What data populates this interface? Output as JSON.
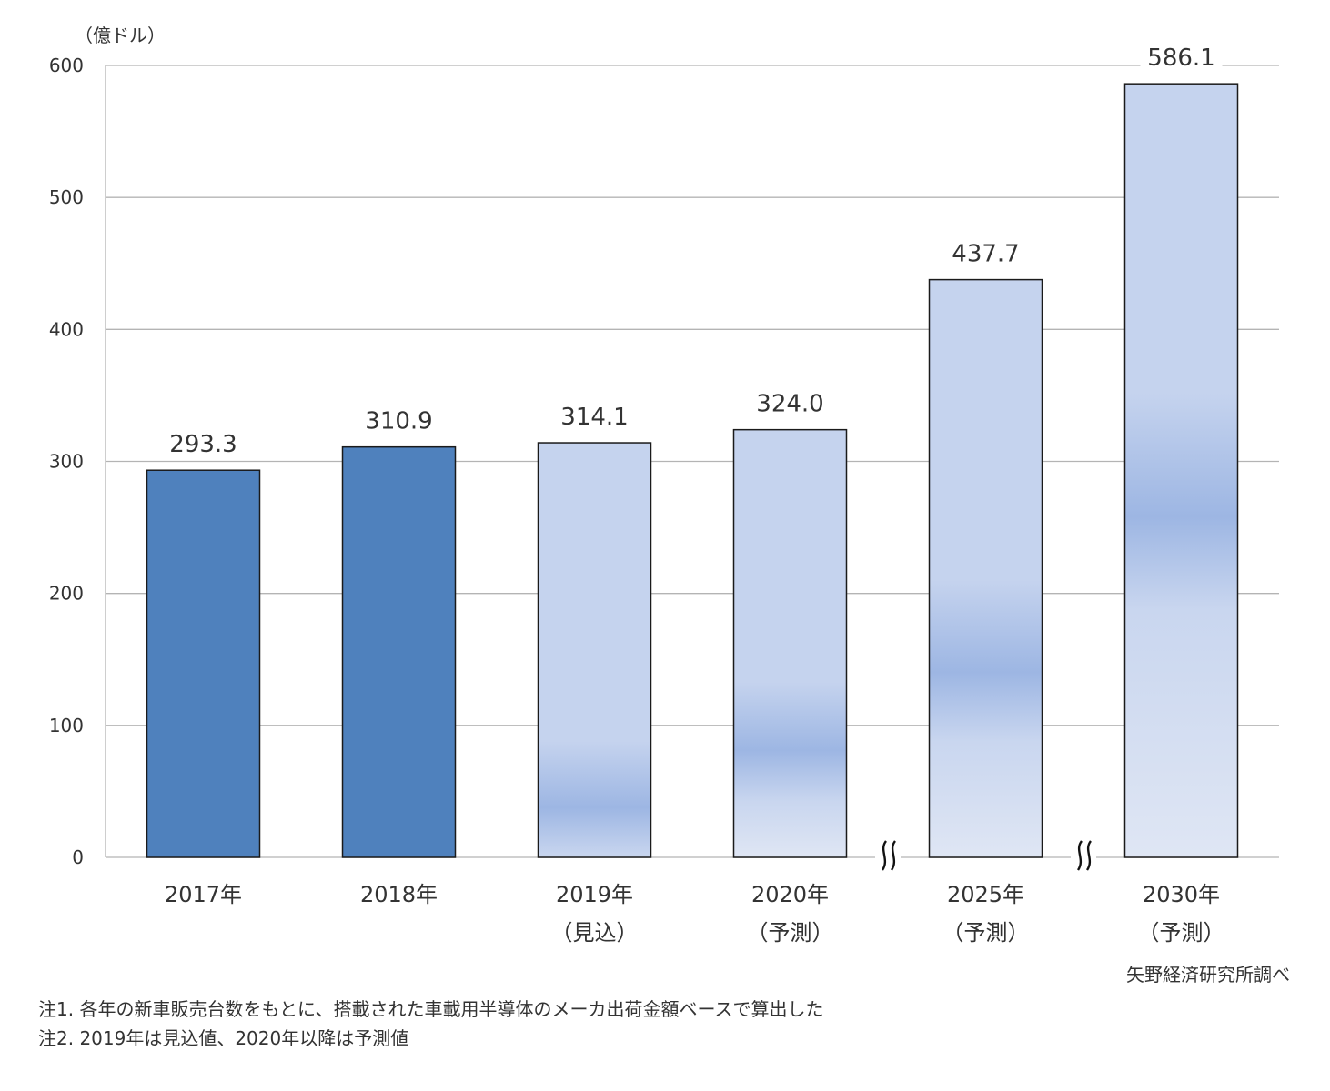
{
  "chart_data": {
    "type": "bar",
    "unit_label": "（億ドル）",
    "categories": [
      "2017年",
      "2018年",
      "2019年",
      "2020年",
      "2025年",
      "2030年"
    ],
    "category_notes": [
      "",
      "",
      "（見込）",
      "（予測）",
      "（予測）",
      "（予測）"
    ],
    "values": [
      293.3,
      310.9,
      314.1,
      324.0,
      437.7,
      586.1
    ],
    "value_labels": [
      "293.3",
      "310.9",
      "314.1",
      "324.0",
      "437.7",
      "586.1"
    ],
    "kinds": [
      "actual",
      "actual",
      "forecast",
      "forecast",
      "forecast",
      "forecast"
    ],
    "ylim": [
      0,
      600
    ],
    "yticks": [
      0,
      100,
      200,
      300,
      400,
      500,
      600
    ],
    "axis_breaks_before": [
      "2025年",
      "2030年"
    ],
    "grid": true,
    "colors": {
      "actual": "#4f81bd",
      "forecast_light": "#c5d3ee",
      "forecast_mid": "#9db6e3",
      "forecast_bottom": "#dfe6f4",
      "grid": "#b4b4b4",
      "bar_outline": "#1a1a1a"
    }
  },
  "source": "矢野経済研究所調べ",
  "notes": [
    "注1.  各年の新車販売台数をもとに、搭載された車載用半導体のメーカ出荷金額ベースで算出した",
    "注2.  2019年は見込値、2020年以降は予測値"
  ]
}
